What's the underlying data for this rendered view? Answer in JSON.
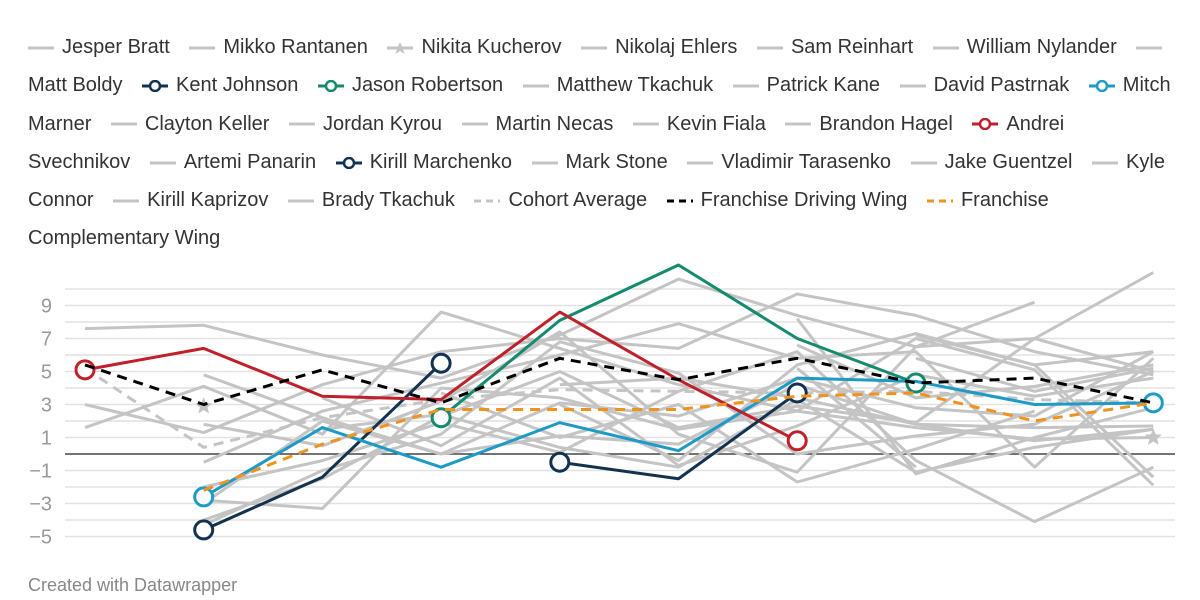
{
  "chart_data": {
    "type": "line",
    "title": "",
    "xlabel": "",
    "ylabel": "",
    "ylim": [
      -5.5,
      11
    ],
    "yticks": [
      "9",
      "7",
      "5",
      "3",
      "1",
      "−1",
      "−3",
      "−5"
    ],
    "ytick_values": [
      9,
      7,
      5,
      3,
      1,
      -1,
      -3,
      -5
    ],
    "grid": true,
    "legend_position": "top",
    "x": [
      1,
      2,
      3,
      4,
      5,
      6,
      7,
      8,
      9,
      10
    ],
    "series": [
      {
        "name": "Jesper Bratt",
        "color": "#c4c4c4",
        "values": [
          7.6,
          7.8,
          6.0,
          4.6,
          7.2,
          10.6,
          8.4,
          6.5,
          7.0,
          5.0
        ]
      },
      {
        "name": "Mikko Rantanen",
        "color": "#c4c4c4",
        "values": [
          3.0,
          1.3,
          4.2,
          6.2,
          7.0,
          6.4,
          9.7,
          8.4,
          6.2,
          4.8
        ]
      },
      {
        "name": "Nikita Kucherov",
        "color": "#c4c4c4",
        "marker": "star",
        "values": [
          null,
          2.9,
          null,
          null,
          null,
          null,
          null,
          null,
          null,
          1.0
        ]
      },
      {
        "name": "Nikolaj Ehlers",
        "color": "#c4c4c4",
        "values": [
          1.6,
          4.1,
          1.2,
          8.6,
          6.4,
          4.2,
          2.6,
          1.6,
          0.9,
          1.0
        ]
      },
      {
        "name": "Sam Reinhart",
        "color": "#c4c4c4",
        "values": [
          null,
          4.8,
          2.2,
          0.0,
          1.1,
          0.6,
          4.2,
          1.8,
          1.6,
          1.7
        ]
      },
      {
        "name": "William Nylander",
        "color": "#c4c4c4",
        "values": [
          null,
          -0.5,
          2.6,
          4.3,
          6.0,
          7.9,
          5.8,
          6.2,
          -0.8,
          5.8
        ]
      },
      {
        "name": "Matt Boldy",
        "color": "#c4c4c4",
        "values": [
          null,
          -2.8,
          -3.3,
          4.0,
          3.4,
          1.5,
          2.6,
          7.0,
          5.1,
          -1.9
        ]
      },
      {
        "name": "Kent Johnson",
        "color": "#12324f",
        "marker": "circle",
        "values": [
          null,
          -4.6,
          -1.4,
          5.5,
          null,
          null,
          null,
          null,
          null,
          null
        ]
      },
      {
        "name": "Jason Robertson",
        "color": "#148a6e",
        "marker": "circle",
        "values": [
          null,
          null,
          null,
          2.2,
          8.1,
          11.5,
          7.0,
          4.3,
          null,
          null
        ]
      },
      {
        "name": "Matthew Tkachuk",
        "color": "#c4c4c4",
        "values": [
          null,
          null,
          3.4,
          0.5,
          4.6,
          -0.7,
          1.7,
          4.8,
          3.5,
          4.6
        ]
      },
      {
        "name": "Patrick Kane",
        "color": "#c4c4c4",
        "values": [
          null,
          -2.0,
          -0.4,
          1.9,
          0.1,
          3.8,
          6.2,
          -0.4,
          -4.1,
          -0.8
        ]
      },
      {
        "name": "David Pastrnak",
        "color": "#c4c4c4",
        "values": [
          null,
          1.8,
          0.5,
          3.2,
          7.4,
          1.2,
          -1.1,
          6.5,
          9.2,
          null
        ]
      },
      {
        "name": "Mitch Marner",
        "color": "#1d9bc6",
        "marker": "circle",
        "values": [
          null,
          -2.6,
          1.6,
          -0.8,
          1.9,
          0.2,
          4.6,
          4.4,
          3.0,
          3.1
        ]
      },
      {
        "name": "Clayton Keller",
        "color": "#c4c4c4",
        "values": [
          null,
          -3.0,
          2.0,
          0.0,
          3.1,
          2.3,
          4.6,
          2.8,
          2.3,
          6.2
        ]
      },
      {
        "name": "Jordan Kyrou",
        "color": "#c4c4c4",
        "values": [
          null,
          -4.3,
          -1.0,
          1.2,
          6.8,
          4.9,
          0.0,
          1.1,
          1.8,
          5.0
        ]
      },
      {
        "name": "Martin Necas",
        "color": "#c4c4c4",
        "values": [
          null,
          null,
          1.5,
          2.4,
          0.4,
          -0.8,
          3.3,
          -1.1,
          0.4,
          1.5
        ]
      },
      {
        "name": "Kevin Fiala",
        "color": "#c4c4c4",
        "values": [
          null,
          -4.0,
          -1.5,
          2.3,
          5.0,
          1.6,
          2.9,
          1.9,
          7.0,
          11.0
        ]
      },
      {
        "name": "Brandon Hagel",
        "color": "#c4c4c4",
        "values": [
          null,
          null,
          null,
          3.7,
          1.0,
          3.0,
          -1.7,
          0.3,
          2.6,
          null
        ]
      },
      {
        "name": "Andrei Svechnikov",
        "color": "#c0202a",
        "marker": "circle",
        "values": [
          5.1,
          6.4,
          3.5,
          3.3,
          8.6,
          4.5,
          0.8,
          null,
          null,
          null
        ]
      },
      {
        "name": "Artemi Panarin",
        "color": "#c4c4c4",
        "values": [
          null,
          null,
          null,
          null,
          3.0,
          -0.4,
          5.4,
          7.3,
          5.4,
          -1.4
        ]
      },
      {
        "name": "Kirill Marchenko",
        "color": "#12324f",
        "marker": "circle",
        "values": [
          null,
          null,
          null,
          null,
          -0.5,
          -1.5,
          3.7,
          null,
          null,
          null
        ]
      },
      {
        "name": "Mark Stone",
        "color": "#c4c4c4",
        "values": [
          null,
          null,
          null,
          null,
          4.2,
          4.6,
          3.4,
          1.8,
          0.8,
          1.5
        ]
      },
      {
        "name": "Vladimir Tarasenko",
        "color": "#c4c4c4",
        "values": [
          null,
          null,
          null,
          null,
          null,
          null,
          null,
          5.8,
          3.8,
          5.2
        ]
      },
      {
        "name": "Jake Guentzel",
        "color": "#c4c4c4",
        "values": [
          null,
          null,
          null,
          null,
          null,
          null,
          null,
          7.2,
          5.4,
          6.2
        ]
      },
      {
        "name": "Kyle Connor",
        "color": "#c4c4c4",
        "values": [
          null,
          null,
          null,
          null,
          null,
          null,
          5.2,
          -0.8,
          null,
          null
        ]
      },
      {
        "name": "Kirill Kaprizov",
        "color": "#c4c4c4",
        "values": [
          null,
          null,
          null,
          null,
          null,
          null,
          8.2,
          -1.2,
          1.0,
          2.8
        ]
      },
      {
        "name": "Brady Tkachuk",
        "color": "#c4c4c4",
        "values": [
          null,
          null,
          null,
          null,
          null,
          null,
          6.6,
          3.4,
          4.1,
          5.4
        ]
      },
      {
        "name": "Cohort Average",
        "color": "#c4c4c4",
        "dash": true,
        "values": [
          5.2,
          0.4,
          2.2,
          3.3,
          3.9,
          3.8,
          3.7,
          3.8,
          3.3,
          3.1
        ]
      },
      {
        "name": "Franchise Driving Wing",
        "color": "#000000",
        "dash": true,
        "values": [
          5.4,
          3.0,
          5.1,
          3.1,
          5.8,
          4.5,
          5.8,
          4.3,
          4.6,
          3.1
        ]
      },
      {
        "name": "Franchise Complementary Wing",
        "color": "#f0931e",
        "dash": true,
        "values": [
          null,
          -2.2,
          0.6,
          2.7,
          2.7,
          2.7,
          3.5,
          3.7,
          2.0,
          3.1
        ]
      }
    ]
  },
  "footer": {
    "credit": "Created with Datawrapper"
  }
}
